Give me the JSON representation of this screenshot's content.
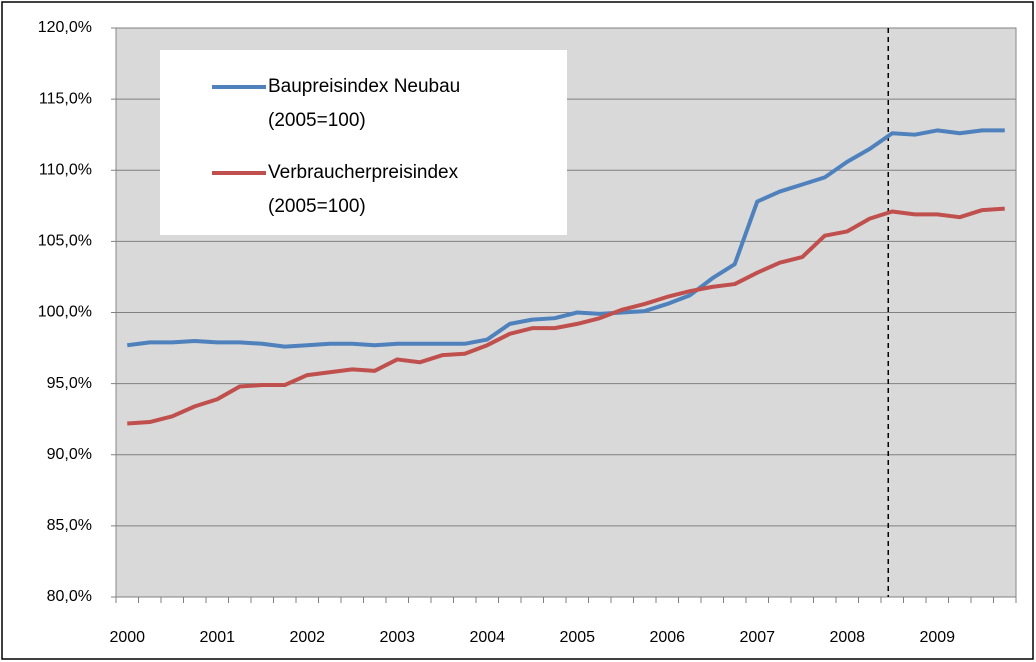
{
  "chart_data": {
    "type": "line",
    "categories": [
      "2000",
      null,
      null,
      null,
      "2001",
      null,
      null,
      null,
      "2002",
      null,
      null,
      null,
      "2003",
      null,
      null,
      null,
      "2004",
      null,
      null,
      null,
      "2005",
      null,
      null,
      null,
      "2006",
      null,
      null,
      null,
      "2007",
      null,
      null,
      null,
      "2008",
      null,
      null,
      null,
      "2009",
      null,
      null,
      null
    ],
    "series": [
      {
        "name": "Baupreisindex Neubau (2005=100)",
        "color": "#4f81bd",
        "values": [
          97.7,
          97.9,
          97.9,
          98.0,
          97.9,
          97.9,
          97.8,
          97.6,
          97.7,
          97.8,
          97.8,
          97.7,
          97.8,
          97.8,
          97.8,
          97.8,
          98.1,
          99.2,
          99.5,
          99.6,
          100.0,
          99.9,
          100.0,
          100.1,
          100.6,
          101.2,
          102.4,
          103.4,
          107.8,
          108.5,
          109.0,
          109.5,
          110.6,
          111.5,
          112.6,
          112.5,
          112.8,
          112.6,
          112.8,
          112.8
        ]
      },
      {
        "name": "Verbraucherpreisindex (2005=100)",
        "color": "#c0504d",
        "values": [
          92.2,
          92.3,
          92.7,
          93.4,
          93.9,
          94.8,
          94.9,
          94.9,
          95.6,
          95.8,
          96.0,
          95.9,
          96.7,
          96.5,
          97.0,
          97.1,
          97.7,
          98.5,
          98.9,
          98.9,
          99.2,
          99.6,
          100.2,
          100.6,
          101.1,
          101.5,
          101.8,
          102.0,
          102.8,
          103.5,
          103.9,
          105.4,
          105.7,
          106.6,
          107.1,
          106.9,
          106.9,
          106.7,
          107.2,
          107.3
        ]
      }
    ],
    "ylim": [
      80,
      120
    ],
    "yticks": [
      {
        "value": 80,
        "label": "80,0%"
      },
      {
        "value": 85,
        "label": "85,0%"
      },
      {
        "value": 90,
        "label": "90,0%"
      },
      {
        "value": 95,
        "label": "95,0%"
      },
      {
        "value": 100,
        "label": "100,0%"
      },
      {
        "value": 105,
        "label": "105,0%"
      },
      {
        "value": 110,
        "label": "110,0%"
      },
      {
        "value": 115,
        "label": "115,0%"
      },
      {
        "value": 120,
        "label": "120,0%"
      }
    ],
    "grid": true,
    "vline_at": 34,
    "legend": "upper left"
  }
}
